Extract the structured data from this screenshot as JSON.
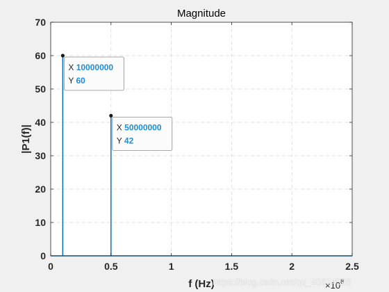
{
  "chart_data": {
    "type": "stem",
    "title": "Magnitude",
    "xlabel": "f (Hz)",
    "ylabel": "|P1(f)|",
    "x_exponent": "×10",
    "x_exponent_power": "8",
    "xlim": [
      0,
      250000000
    ],
    "ylim": [
      0,
      70
    ],
    "xticks": [
      0,
      50000000,
      100000000,
      150000000,
      200000000,
      250000000
    ],
    "xtick_labels": [
      "0",
      "0.5",
      "1",
      "1.5",
      "2",
      "2.5"
    ],
    "yticks": [
      0,
      10,
      20,
      30,
      40,
      50,
      60,
      70
    ],
    "ytick_labels": [
      "0",
      "10",
      "20",
      "30",
      "40",
      "50",
      "60",
      "70"
    ],
    "grid": true,
    "series": [
      {
        "color": "#0072bd",
        "points": [
          {
            "x": 10000000,
            "y": 60
          },
          {
            "x": 50000000,
            "y": 42
          }
        ]
      }
    ],
    "datatips": [
      {
        "x_label": "X",
        "x_value": "10000000",
        "y_label": "Y",
        "y_value": "60"
      },
      {
        "x_label": "X",
        "x_value": "50000000",
        "y_label": "Y",
        "y_value": "42"
      }
    ]
  },
  "watermark": "https://blog.csdn.net/qq_40874526",
  "colors": {
    "figure_bg": "#f0f0f0",
    "axes_bg": "#ffffff",
    "line": "#0072bd",
    "tip_value": "#1a8fd9"
  }
}
